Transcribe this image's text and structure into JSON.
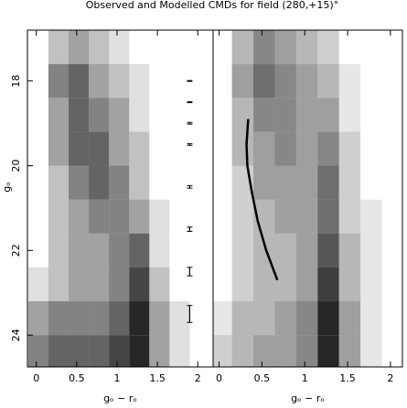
{
  "chart_data": [
    {
      "type": "heatmap",
      "title": "Observed and Modelled CMDs for field  (280,+15)°",
      "xlabel": "gₒ − rₒ",
      "ylabel": "gₒ",
      "xlim": [
        -0.11,
        2.19
      ],
      "ylim": [
        24.75,
        16.8
      ],
      "xticks": [
        0,
        0.5,
        1,
        1.5,
        2
      ],
      "yticks": [
        18,
        20,
        22,
        24
      ],
      "color": "#000000",
      "xbins": [
        -0.1,
        0.15,
        0.4,
        0.65,
        0.9,
        1.15,
        1.4,
        1.65,
        1.9,
        2.15
      ],
      "ybins": [
        16.8,
        17.6,
        18.4,
        19.2,
        20.0,
        20.8,
        21.6,
        22.4,
        23.2,
        24.0,
        24.8
      ],
      "density": [
        [
          0,
          2,
          3,
          2,
          1,
          0,
          0,
          0,
          0
        ],
        [
          0,
          4,
          5,
          3,
          2,
          1,
          0,
          0,
          0
        ],
        [
          0,
          3,
          5,
          4,
          3,
          1,
          0,
          0,
          0
        ],
        [
          0,
          3,
          5,
          5,
          3,
          2,
          0,
          0,
          0
        ],
        [
          0,
          2,
          4,
          5,
          4,
          2,
          0,
          0,
          0
        ],
        [
          0,
          2,
          3,
          4,
          4,
          3,
          1,
          0,
          0
        ],
        [
          0,
          2,
          3,
          3,
          4,
          5,
          1,
          0,
          0
        ],
        [
          1,
          2,
          3,
          3,
          4,
          6,
          2,
          0,
          0
        ],
        [
          3,
          4,
          4,
          4,
          5,
          7,
          3,
          1,
          0
        ],
        [
          4,
          5,
          5,
          5,
          6,
          7,
          3,
          1,
          0
        ]
      ],
      "error_bars": {
        "x": 1.9,
        "y": [
          18,
          18.5,
          19,
          19.5,
          20.5,
          21.5,
          22.5,
          23.5
        ],
        "yerr": [
          0.01,
          0.01,
          0.02,
          0.02,
          0.03,
          0.05,
          0.1,
          0.2
        ]
      }
    },
    {
      "type": "heatmap",
      "xlabel": "gₒ − rₒ",
      "xlim": [
        -0.07,
        2.14
      ],
      "ylim": [
        24.75,
        16.8
      ],
      "xticks": [
        0,
        0.5,
        1,
        1.5,
        2
      ],
      "color": "#000000",
      "xbins": [
        -0.1,
        0.15,
        0.4,
        0.65,
        0.9,
        1.15,
        1.4,
        1.65,
        1.9,
        2.15
      ],
      "ybins": [
        16.8,
        17.6,
        18.4,
        19.2,
        20.0,
        20.8,
        21.6,
        22.4,
        23.2,
        24.0,
        24.8
      ],
      "density": [
        [
          0,
          3,
          5,
          4,
          3,
          2,
          0,
          0,
          0
        ],
        [
          0,
          4,
          6,
          5,
          4,
          3,
          1,
          0,
          0
        ],
        [
          0,
          3,
          5,
          5,
          4,
          4,
          1,
          0,
          0
        ],
        [
          0,
          3,
          4,
          5,
          4,
          5,
          2,
          0,
          0
        ],
        [
          0,
          2,
          4,
          4,
          4,
          6,
          2,
          0,
          0
        ],
        [
          0,
          2,
          3,
          4,
          4,
          6,
          2,
          1,
          0
        ],
        [
          0,
          2,
          3,
          3,
          4,
          7,
          3,
          1,
          0
        ],
        [
          0,
          2,
          3,
          3,
          4,
          8,
          3,
          1,
          0
        ],
        [
          1,
          3,
          3,
          4,
          5,
          9,
          4,
          1,
          0
        ],
        [
          2,
          3,
          4,
          4,
          5,
          9,
          4,
          1,
          0
        ]
      ],
      "curve": {
        "x": [
          0.34,
          0.32,
          0.33,
          0.38,
          0.45,
          0.55,
          0.68
        ],
        "y": [
          18.9,
          19.5,
          20.0,
          20.6,
          21.3,
          22.0,
          22.7
        ]
      }
    }
  ]
}
